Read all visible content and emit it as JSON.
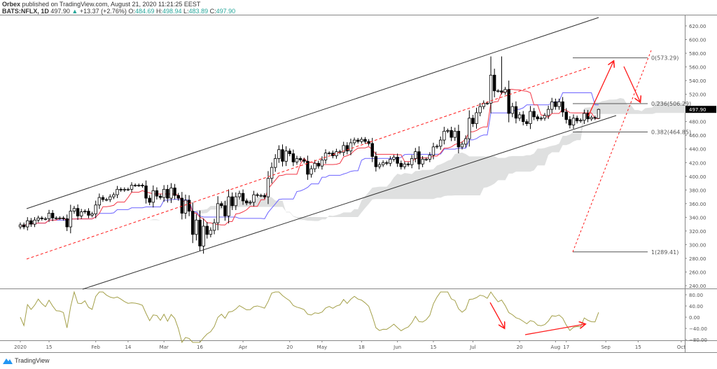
{
  "header": {
    "line1_author": "Orbex",
    "line1_rest": "published on TradingView.com, August 21, 2020 11:21:25 EEST",
    "symbol": "BATS:NFLX, 1D",
    "last": "497.90",
    "change": "+13.37 (+2.76%)",
    "o_label": "O:",
    "o": "484.69",
    "h_label": "H:",
    "h": "498.94",
    "l_label": "L:",
    "l": "483.89",
    "c_label": "C:",
    "c": "497.90"
  },
  "colors": {
    "up_fill": "#ffffff",
    "down_fill": "#000000",
    "tenkan": "#f23645",
    "kijun": "#6c63ff",
    "cloud": "#d9dadb",
    "oscillator": "#a4a04a",
    "annotation": "#ff1a1a",
    "price_badge": "#000000"
  },
  "brand": "TradingView",
  "chart_data": {
    "type": "candlestick",
    "symbol": "NFLX",
    "interval": "1D",
    "start_date": "2020-01-02",
    "end_date": "2020-08-21",
    "closes": [
      329,
      326,
      335,
      330,
      336,
      339,
      338,
      338,
      346,
      339,
      339,
      339,
      338,
      326,
      349,
      353,
      342,
      348,
      349,
      343,
      345,
      358,
      369,
      366,
      366,
      370,
      373,
      381,
      380,
      381,
      381,
      387,
      387,
      387,
      386,
      368,
      362,
      379,
      371,
      369,
      381,
      368,
      383,
      372,
      368,
      346,
      365,
      349,
      315,
      336,
      298,
      327,
      315,
      321,
      332,
      360,
      357,
      342,
      370,
      357,
      370,
      375,
      364,
      361,
      362,
      373,
      372,
      372,
      370,
      397,
      413,
      426,
      439,
      422,
      437,
      433,
      421,
      426,
      424,
      422,
      403,
      411,
      419,
      415,
      424,
      434,
      434,
      430,
      436,
      435,
      445,
      437,
      449,
      453,
      451,
      454,
      451,
      448,
      429,
      414,
      417,
      420,
      419,
      425,
      428,
      419,
      414,
      418,
      417,
      426,
      436,
      418,
      425,
      425,
      431,
      443,
      444,
      453,
      466,
      467,
      457,
      466,
      443,
      447,
      455,
      485,
      477,
      493,
      502,
      507,
      507,
      548,
      525,
      525,
      523,
      527,
      492,
      502,
      485,
      490,
      480,
      477,
      495,
      487,
      484,
      485,
      489,
      498,
      509,
      502,
      509,
      494,
      483,
      475,
      485,
      481,
      482,
      492,
      484,
      486,
      485,
      497.9
    ],
    "last_candle": {
      "open": 484.69,
      "high": 498.94,
      "low": 483.89,
      "close": 497.9
    },
    "max_high": 575.37,
    "min_low": 290.25,
    "indicators": [
      "Ichimoku Cloud",
      "Oscillator"
    ],
    "price_axis": {
      "min": 240,
      "max": 620,
      "ticks": [
        "620.00",
        "600.00",
        "580.00",
        "560.00",
        "540.00",
        "520.00",
        "480.00",
        "460.00",
        "440.00",
        "420.00",
        "400.00",
        "380.00",
        "360.00",
        "340.00",
        "320.00",
        "300.00",
        "280.00",
        "260.00",
        "240.00"
      ]
    },
    "current_price_label": "497.90",
    "oscillator_axis": {
      "min": -80,
      "max": 80,
      "ticks": [
        "80.00",
        "40.00",
        "0.00",
        "−40.00",
        "−80.00"
      ]
    },
    "x_ticks": [
      "2020",
      "15",
      "Feb",
      "14",
      "Mar",
      "16",
      "Apr",
      "20",
      "May",
      "18",
      "Jun",
      "15",
      "Jul",
      "20",
      "Aug",
      "17",
      "Sep",
      "15",
      "Oct"
    ],
    "fibonacci": [
      {
        "level": "0",
        "price": 573.29,
        "label": "0(573.29)"
      },
      {
        "level": "0.236",
        "price": 506.29,
        "label": "0.236(506.29)"
      },
      {
        "level": "0.382",
        "price": 464.85,
        "label": "0.382(464.85)"
      },
      {
        "level": "1",
        "price": 289.41,
        "label": "1(289.41)"
      }
    ],
    "drawings": [
      "ascending channel",
      "dashed channel midline",
      "fibonacci retracement",
      "projection arrows up then down",
      "oscillator arrows down then up"
    ]
  }
}
